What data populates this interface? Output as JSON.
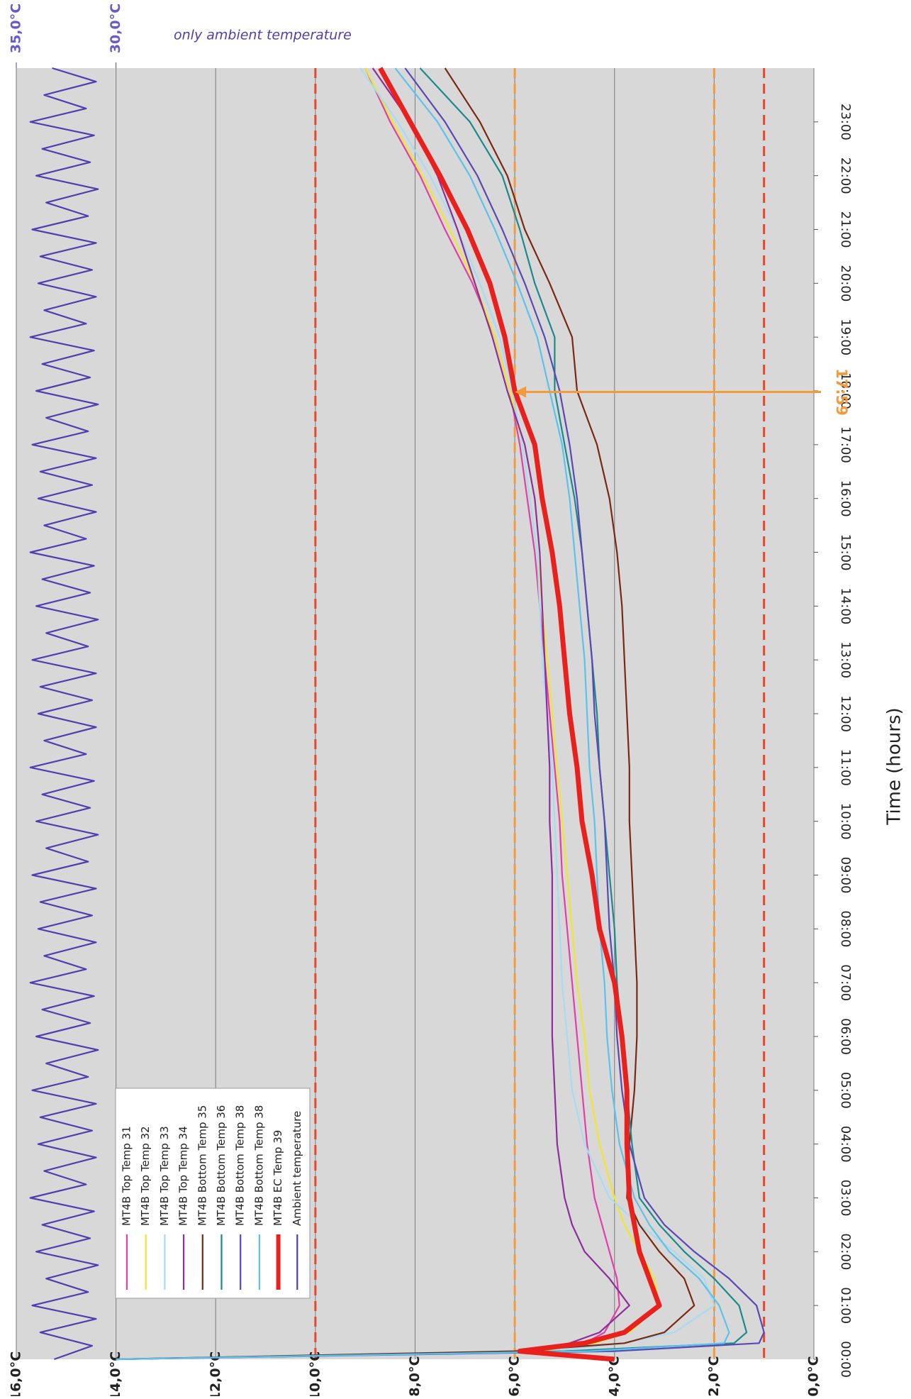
{
  "chart_data": {
    "type": "line",
    "annotation": "only ambient temperature",
    "xlabel": "Time (hours)",
    "xlim": [
      0,
      24
    ],
    "xticks": [
      {
        "value": 0,
        "label": "00:00"
      },
      {
        "value": 1,
        "label": "01:00"
      },
      {
        "value": 2,
        "label": "02:00"
      },
      {
        "value": 3,
        "label": "03:00"
      },
      {
        "value": 4,
        "label": "04:00"
      },
      {
        "value": 5,
        "label": "05:00"
      },
      {
        "value": 6,
        "label": "06:00"
      },
      {
        "value": 7,
        "label": "07:00"
      },
      {
        "value": 8,
        "label": "08:00"
      },
      {
        "value": 9,
        "label": "09:00"
      },
      {
        "value": 10,
        "label": "10:00"
      },
      {
        "value": 11,
        "label": "11:00"
      },
      {
        "value": 12,
        "label": "12:00"
      },
      {
        "value": 13,
        "label": "13:00"
      },
      {
        "value": 14,
        "label": "14:00"
      },
      {
        "value": 15,
        "label": "15:00"
      },
      {
        "value": 16,
        "label": "16:00"
      },
      {
        "value": 17,
        "label": "17:00"
      },
      {
        "value": 18,
        "label": "18:00"
      },
      {
        "value": 19,
        "label": "19:00"
      },
      {
        "value": 20,
        "label": "20:00"
      },
      {
        "value": 21,
        "label": "21:00"
      },
      {
        "value": 22,
        "label": "22:00"
      },
      {
        "value": 23,
        "label": "23:00"
      }
    ],
    "ylim": [
      0,
      16
    ],
    "yticks": [
      {
        "value": 0,
        "label": "0,0°C"
      },
      {
        "value": 2,
        "label": "2,0°C"
      },
      {
        "value": 4,
        "label": "4,0°C"
      },
      {
        "value": 6,
        "label": "6,0°C"
      },
      {
        "value": 8,
        "label": "8,0°C"
      },
      {
        "value": 10,
        "label": "10,0°C"
      },
      {
        "value": 12,
        "label": "12,0°C"
      },
      {
        "value": 14,
        "label": "14,0°C"
      },
      {
        "value": 16,
        "label": "16,0°C"
      }
    ],
    "y2lim": [
      -5,
      35
    ],
    "y2ticks": [
      {
        "value": 30,
        "label": "30,0°C"
      },
      {
        "value": 35,
        "label": "35,0°C"
      }
    ],
    "grid": true,
    "reference_lines": [
      {
        "value": 10,
        "color": "#e8452a"
      },
      {
        "value": 1,
        "color": "#e8452a"
      },
      {
        "value": 6,
        "color": "#f39a3c"
      },
      {
        "value": 2,
        "color": "#f39a3c"
      }
    ],
    "marker_annotation": {
      "text": "17:59",
      "x": 17.98,
      "y": 6.0,
      "color": "#f39a3c"
    },
    "x": [
      0,
      0.15,
      0.3,
      0.5,
      1,
      1.5,
      2,
      2.5,
      3,
      4,
      5,
      6,
      7,
      8,
      9,
      10,
      11,
      12,
      13,
      14,
      15,
      16,
      17,
      18,
      19,
      20,
      21,
      22,
      23,
      24
    ],
    "series": [
      {
        "name": "MT4B Top Temp 31",
        "color": "#e040a8",
        "values": [
          4,
          5.5,
          4.6,
          4.2,
          3.9,
          3.95,
          4.1,
          4.25,
          4.4,
          4.55,
          4.65,
          4.75,
          4.85,
          4.95,
          5.05,
          5.1,
          5.2,
          5.3,
          5.4,
          5.5,
          5.6,
          5.75,
          5.9,
          6.1,
          6.4,
          6.85,
          7.4,
          7.9,
          8.5,
          9.0
        ]
      },
      {
        "name": "MT4B Top Temp 32",
        "color": "#f2e62a",
        "values": [
          4,
          5.5,
          4.4,
          3.7,
          3.1,
          3.2,
          3.5,
          3.8,
          4.0,
          4.3,
          4.5,
          4.6,
          4.75,
          4.85,
          4.95,
          5.05,
          5.15,
          5.25,
          5.35,
          5.45,
          5.55,
          5.7,
          5.85,
          6.1,
          6.4,
          6.8,
          7.3,
          7.85,
          8.45,
          9.0
        ]
      },
      {
        "name": "MT4B Top Temp 33",
        "color": "#a6dcf2",
        "values": [
          4,
          5.3,
          3.8,
          2.8,
          2.0,
          2.2,
          2.8,
          3.5,
          4.1,
          4.6,
          4.85,
          4.95,
          5.05,
          5.1,
          5.15,
          5.2,
          5.25,
          5.35,
          5.45,
          5.5,
          5.55,
          5.7,
          5.85,
          6.05,
          6.3,
          6.7,
          7.15,
          7.7,
          8.35,
          9.1
        ]
      },
      {
        "name": "MT4B Top Temp 34",
        "color": "#8e2e9c",
        "values": [
          4,
          5.8,
          4.9,
          4.3,
          3.7,
          4.1,
          4.6,
          4.85,
          5.0,
          5.15,
          5.2,
          5.25,
          5.25,
          5.25,
          5.25,
          5.3,
          5.3,
          5.35,
          5.4,
          5.45,
          5.5,
          5.6,
          5.8,
          6.15,
          6.45,
          6.8,
          7.15,
          7.55,
          8.1,
          8.85
        ]
      },
      {
        "name": "MT4B Bottom Temp 35",
        "color": "#7a2812",
        "values": [
          14,
          6,
          3.8,
          3.0,
          2.4,
          2.6,
          3.1,
          3.5,
          3.75,
          3.7,
          3.6,
          3.55,
          3.55,
          3.6,
          3.65,
          3.7,
          3.7,
          3.75,
          3.8,
          3.85,
          3.95,
          4.1,
          4.35,
          4.75,
          4.85,
          5.3,
          5.8,
          6.15,
          6.7,
          7.4
        ]
      },
      {
        "name": "MT4B Bottom Temp 36",
        "color": "#1a8a8c",
        "values": [
          14,
          5,
          1.6,
          1.35,
          1.5,
          2.0,
          2.6,
          3.1,
          3.5,
          3.65,
          3.75,
          3.85,
          3.95,
          4.0,
          4.1,
          4.2,
          4.3,
          4.35,
          4.45,
          4.55,
          4.65,
          4.8,
          5.0,
          5.2,
          5.2,
          5.6,
          5.9,
          6.25,
          6.9,
          7.9
        ]
      },
      {
        "name": "MT4B Bottom Temp 38",
        "color": "#5a48b4",
        "values": [
          14,
          4,
          1.1,
          1.0,
          1.15,
          1.7,
          2.4,
          3.0,
          3.4,
          3.7,
          3.85,
          3.95,
          4.0,
          4.1,
          4.15,
          4.2,
          4.3,
          4.4,
          4.45,
          4.55,
          4.65,
          4.75,
          4.9,
          5.1,
          5.4,
          5.8,
          6.25,
          6.75,
          7.4,
          8.2
        ]
      },
      {
        "name": "MT4B Bottom Temp 38",
        "color": "#5cc2ec",
        "values": [
          14,
          4.5,
          1.8,
          1.7,
          1.9,
          2.3,
          2.9,
          3.3,
          3.6,
          3.9,
          4.05,
          4.15,
          4.2,
          4.3,
          4.35,
          4.4,
          4.5,
          4.55,
          4.6,
          4.7,
          4.8,
          4.9,
          5.05,
          5.3,
          5.55,
          5.95,
          6.4,
          6.9,
          7.55,
          8.4
        ]
      },
      {
        "name": "MT4B EC Temp 39",
        "color": "#e8201e",
        "width": 7,
        "values": [
          4.0,
          5.9,
          4.6,
          3.8,
          3.1,
          3.3,
          3.5,
          3.6,
          3.7,
          3.75,
          3.75,
          3.85,
          4.0,
          4.3,
          4.45,
          4.65,
          4.75,
          4.9,
          5.0,
          5.1,
          5.25,
          5.45,
          5.6,
          6.0,
          6.2,
          6.5,
          6.95,
          7.5,
          8.1,
          8.7
        ]
      },
      {
        "name": "Ambient temperature",
        "color": "#4f3fae",
        "axis": "y2",
        "x": [
          0,
          0.25,
          0.5,
          0.75,
          1,
          1.25,
          1.5,
          1.75,
          2,
          2.25,
          2.5,
          2.75,
          3,
          3.25,
          3.5,
          3.75,
          4,
          4.25,
          4.5,
          4.75,
          5,
          5.25,
          5.5,
          5.75,
          6,
          6.25,
          6.5,
          6.75,
          7,
          7.25,
          7.5,
          7.75,
          8,
          8.25,
          8.5,
          8.75,
          9,
          9.25,
          9.5,
          9.75,
          10,
          10.25,
          10.5,
          10.75,
          11,
          11.25,
          11.5,
          11.75,
          12,
          12.25,
          12.5,
          12.75,
          13,
          13.25,
          13.5,
          13.75,
          14,
          14.25,
          14.5,
          14.75,
          15,
          15.25,
          15.5,
          15.75,
          16,
          16.25,
          16.5,
          16.75,
          17,
          17.25,
          17.5,
          17.75,
          18,
          18.25,
          18.5,
          18.75,
          19,
          19.25,
          19.5,
          19.75,
          20,
          20.25,
          20.5,
          20.75,
          21,
          21.25,
          21.5,
          21.75,
          22,
          22.25,
          22.5,
          22.75,
          23,
          23.25,
          23.5,
          23.75,
          24
        ],
        "values": [
          33.1,
          31.2,
          33.8,
          31.0,
          34.2,
          31.4,
          33.5,
          30.9,
          34.0,
          31.3,
          33.7,
          31.1,
          34.3,
          31.5,
          33.6,
          31.0,
          33.9,
          31.2,
          33.8,
          31.0,
          34.2,
          31.4,
          33.5,
          30.9,
          34.0,
          31.3,
          33.7,
          31.1,
          34.3,
          31.5,
          33.6,
          31.0,
          33.9,
          31.2,
          33.8,
          31.0,
          34.2,
          31.4,
          33.5,
          30.9,
          34.0,
          31.3,
          33.7,
          31.1,
          34.3,
          31.5,
          33.6,
          31.0,
          33.9,
          31.2,
          33.8,
          31.0,
          34.2,
          31.4,
          33.5,
          30.9,
          34.0,
          31.3,
          33.7,
          31.1,
          34.3,
          31.5,
          33.6,
          31.0,
          33.9,
          31.2,
          33.8,
          31.0,
          34.2,
          31.4,
          33.5,
          30.9,
          34.0,
          31.3,
          33.7,
          31.1,
          34.3,
          31.5,
          33.6,
          31.0,
          33.9,
          31.2,
          33.8,
          31.0,
          34.2,
          31.4,
          33.5,
          30.9,
          34.0,
          31.3,
          33.7,
          31.1,
          34.3,
          31.5,
          33.6,
          31.0,
          33.2
        ]
      }
    ]
  }
}
